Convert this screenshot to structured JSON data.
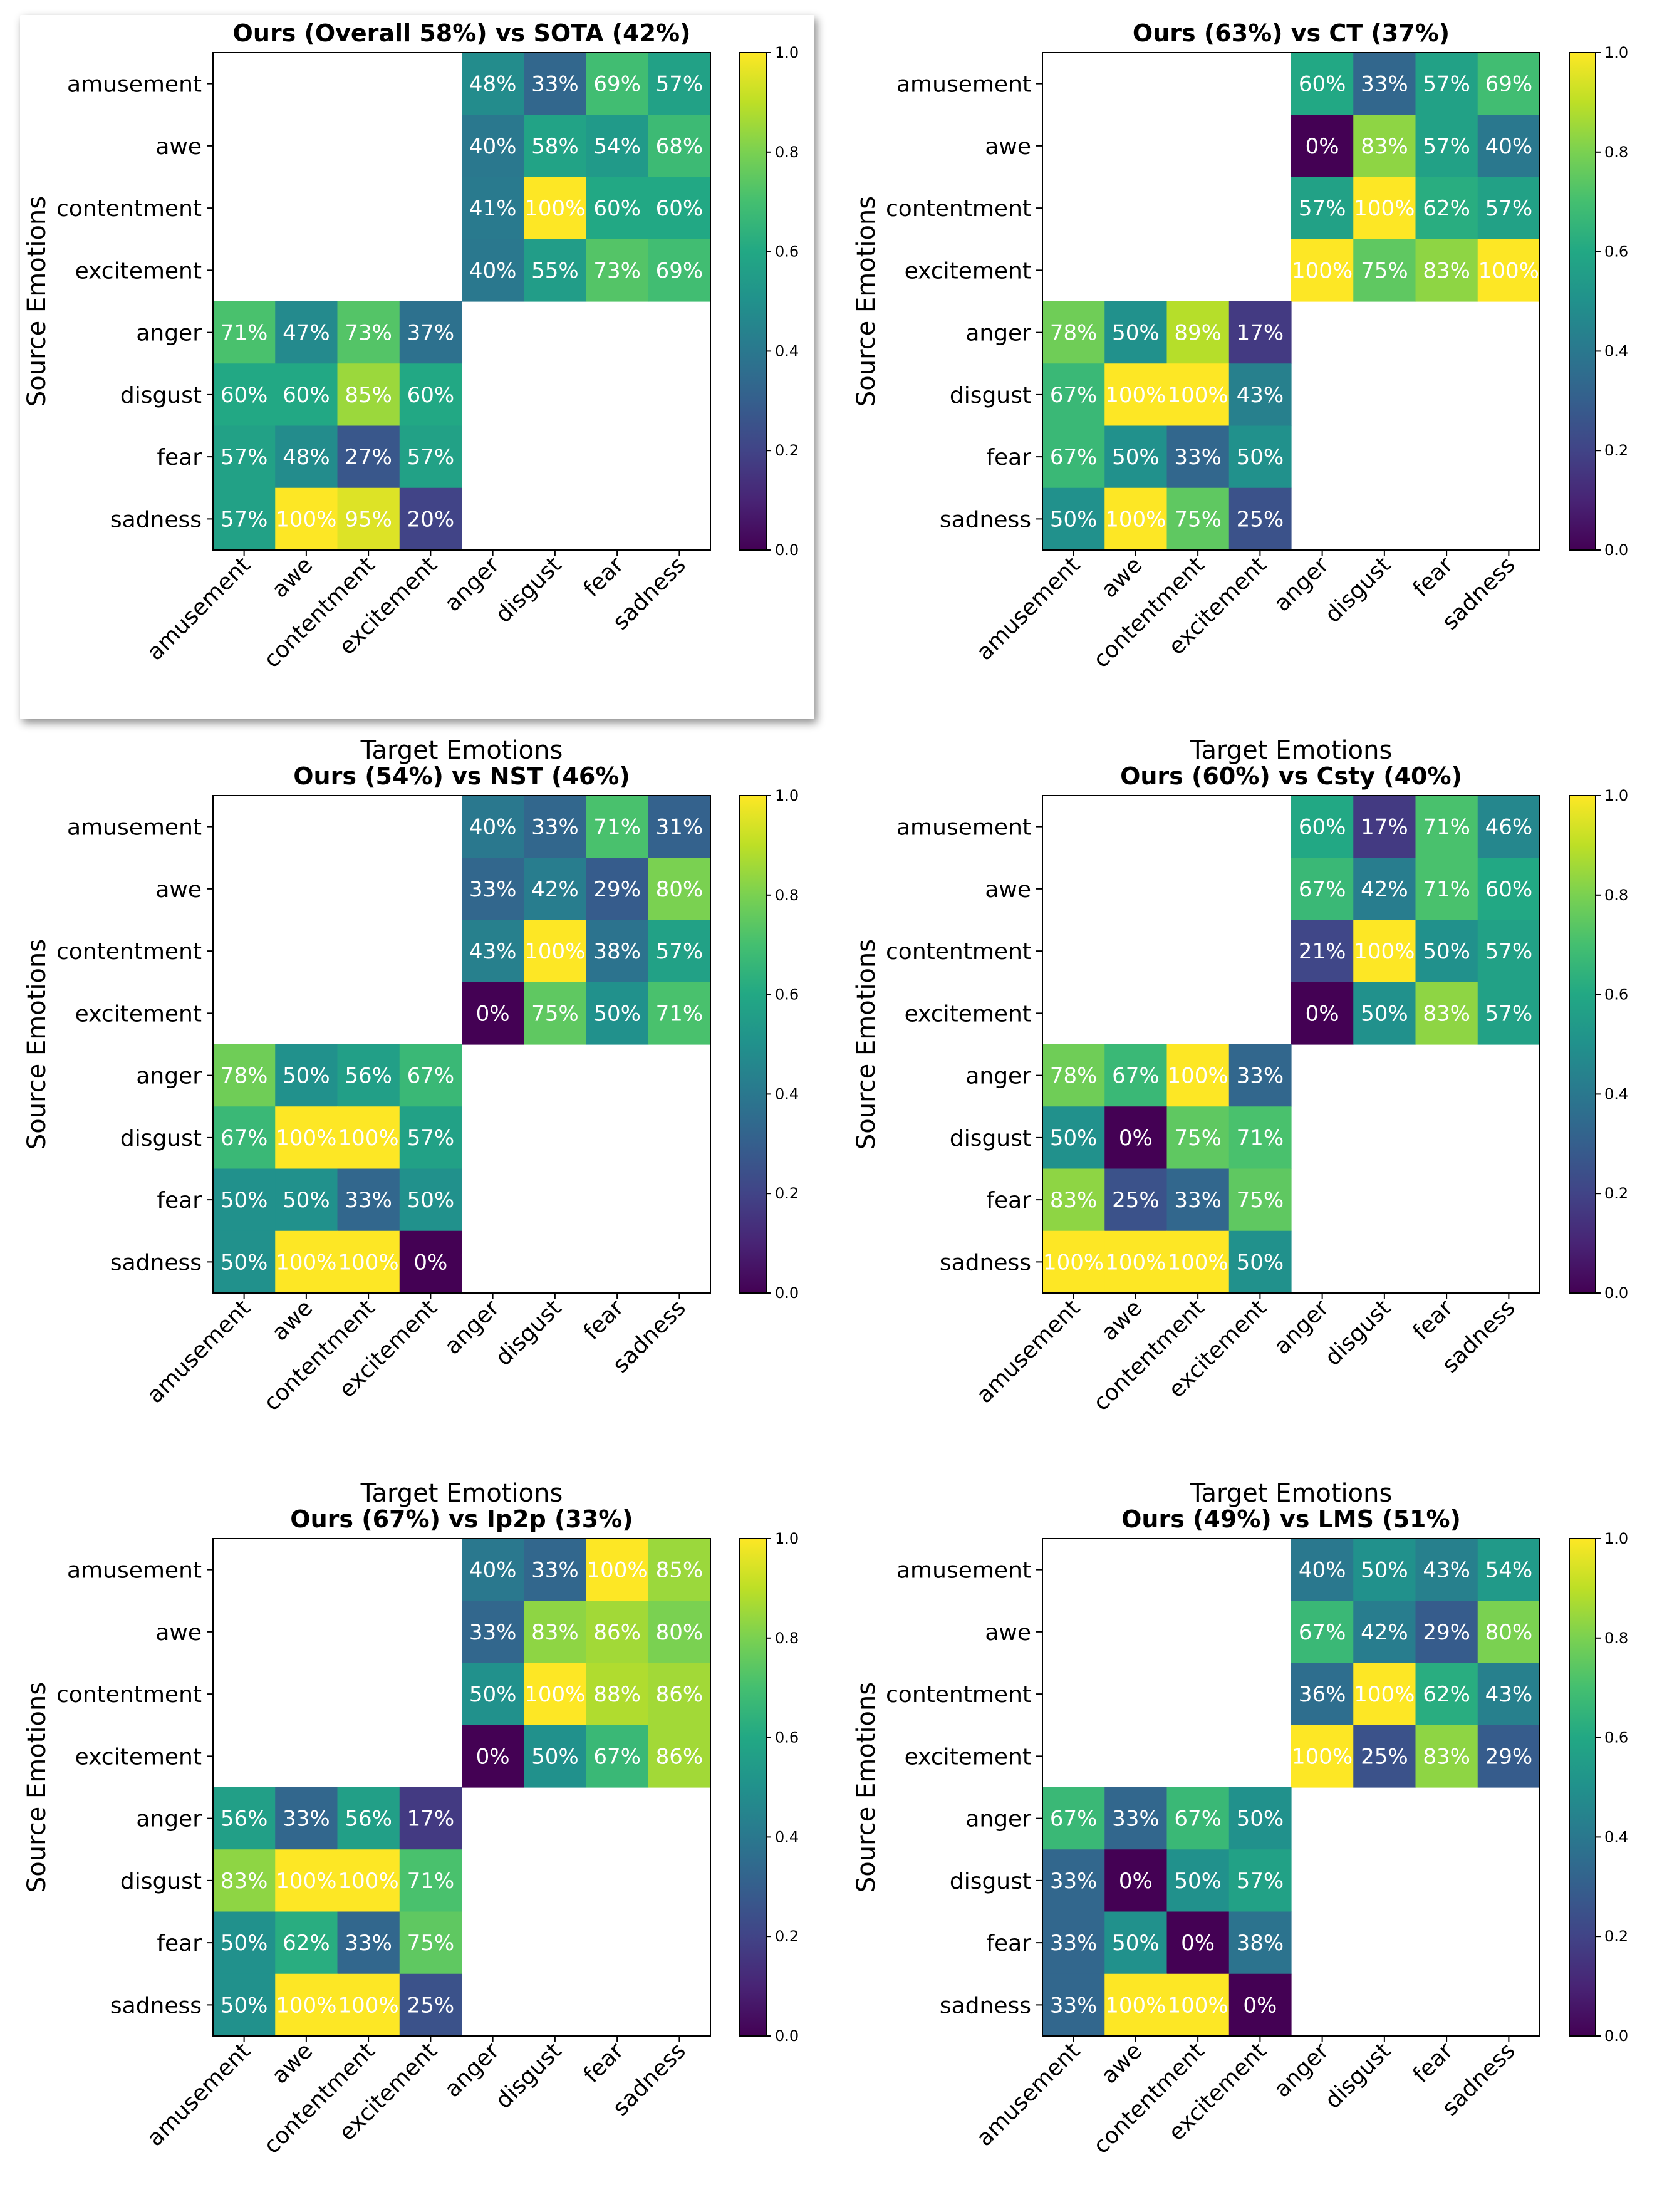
{
  "common": {
    "row_labels": [
      "amusement",
      "awe",
      "contentment",
      "excitement",
      "anger",
      "disgust",
      "fear",
      "sadness"
    ],
    "col_labels": [
      "amusement",
      "awe",
      "contentment",
      "excitement",
      "anger",
      "disgust",
      "fear",
      "sadness"
    ],
    "xlabel": "Target Emotions",
    "ylabel": "Source Emotions",
    "colorbar_ticks": [
      "0.0",
      "0.2",
      "0.4",
      "0.6",
      "0.8",
      "1.0"
    ],
    "colormap": "viridis"
  },
  "chart_data": [
    {
      "type": "heatmap",
      "title": "Ours (Overall 58%) vs SOTA (42%)",
      "highlighted": true,
      "value_range": [
        0,
        1
      ],
      "positive_top_right": [
        [
          48,
          33,
          69,
          57
        ],
        [
          40,
          58,
          54,
          68
        ],
        [
          41,
          100,
          60,
          60
        ],
        [
          40,
          55,
          73,
          69
        ]
      ],
      "negative_bottom_left": [
        [
          71,
          47,
          73,
          37
        ],
        [
          60,
          60,
          85,
          60
        ],
        [
          57,
          48,
          27,
          57
        ],
        [
          57,
          100,
          95,
          20
        ]
      ]
    },
    {
      "type": "heatmap",
      "title": "Ours (63%) vs CT (37%)",
      "value_range": [
        0,
        1
      ],
      "positive_top_right": [
        [
          60,
          33,
          57,
          69
        ],
        [
          0,
          83,
          57,
          40
        ],
        [
          57,
          100,
          62,
          57
        ],
        [
          100,
          75,
          83,
          100
        ]
      ],
      "negative_bottom_left": [
        [
          78,
          50,
          89,
          17
        ],
        [
          67,
          100,
          100,
          43
        ],
        [
          67,
          50,
          33,
          50
        ],
        [
          50,
          100,
          75,
          25
        ]
      ]
    },
    {
      "type": "heatmap",
      "title": "Ours (54%) vs NST (46%)",
      "value_range": [
        0,
        1
      ],
      "positive_top_right": [
        [
          40,
          33,
          71,
          31
        ],
        [
          33,
          42,
          29,
          80
        ],
        [
          43,
          100,
          38,
          57
        ],
        [
          0,
          75,
          50,
          71
        ]
      ],
      "negative_bottom_left": [
        [
          78,
          50,
          56,
          67
        ],
        [
          67,
          100,
          100,
          57
        ],
        [
          50,
          50,
          33,
          50
        ],
        [
          50,
          100,
          100,
          0
        ]
      ]
    },
    {
      "type": "heatmap",
      "title": "Ours (60%) vs Csty (40%)",
      "value_range": [
        0,
        1
      ],
      "positive_top_right": [
        [
          60,
          17,
          71,
          46
        ],
        [
          67,
          42,
          71,
          60
        ],
        [
          21,
          100,
          50,
          57
        ],
        [
          0,
          50,
          83,
          57
        ]
      ],
      "negative_bottom_left": [
        [
          78,
          67,
          100,
          33
        ],
        [
          50,
          0,
          75,
          71
        ],
        [
          83,
          25,
          33,
          75
        ],
        [
          100,
          100,
          100,
          50
        ]
      ]
    },
    {
      "type": "heatmap",
      "title": "Ours (67%) vs Ip2p (33%)",
      "value_range": [
        0,
        1
      ],
      "positive_top_right": [
        [
          40,
          33,
          100,
          85
        ],
        [
          33,
          83,
          86,
          80
        ],
        [
          50,
          100,
          88,
          86
        ],
        [
          0,
          50,
          67,
          86
        ]
      ],
      "negative_bottom_left": [
        [
          56,
          33,
          56,
          17
        ],
        [
          83,
          100,
          100,
          71
        ],
        [
          50,
          62,
          33,
          75
        ],
        [
          50,
          100,
          100,
          25
        ]
      ]
    },
    {
      "type": "heatmap",
      "title": "Ours (49%) vs LMS (51%)",
      "value_range": [
        0,
        1
      ],
      "positive_top_right": [
        [
          40,
          50,
          43,
          54
        ],
        [
          67,
          42,
          29,
          80
        ],
        [
          36,
          100,
          62,
          43
        ],
        [
          100,
          25,
          83,
          29
        ]
      ],
      "negative_bottom_left": [
        [
          67,
          33,
          67,
          50
        ],
        [
          33,
          0,
          50,
          57
        ],
        [
          33,
          50,
          0,
          38
        ],
        [
          33,
          100,
          100,
          0
        ]
      ]
    }
  ]
}
